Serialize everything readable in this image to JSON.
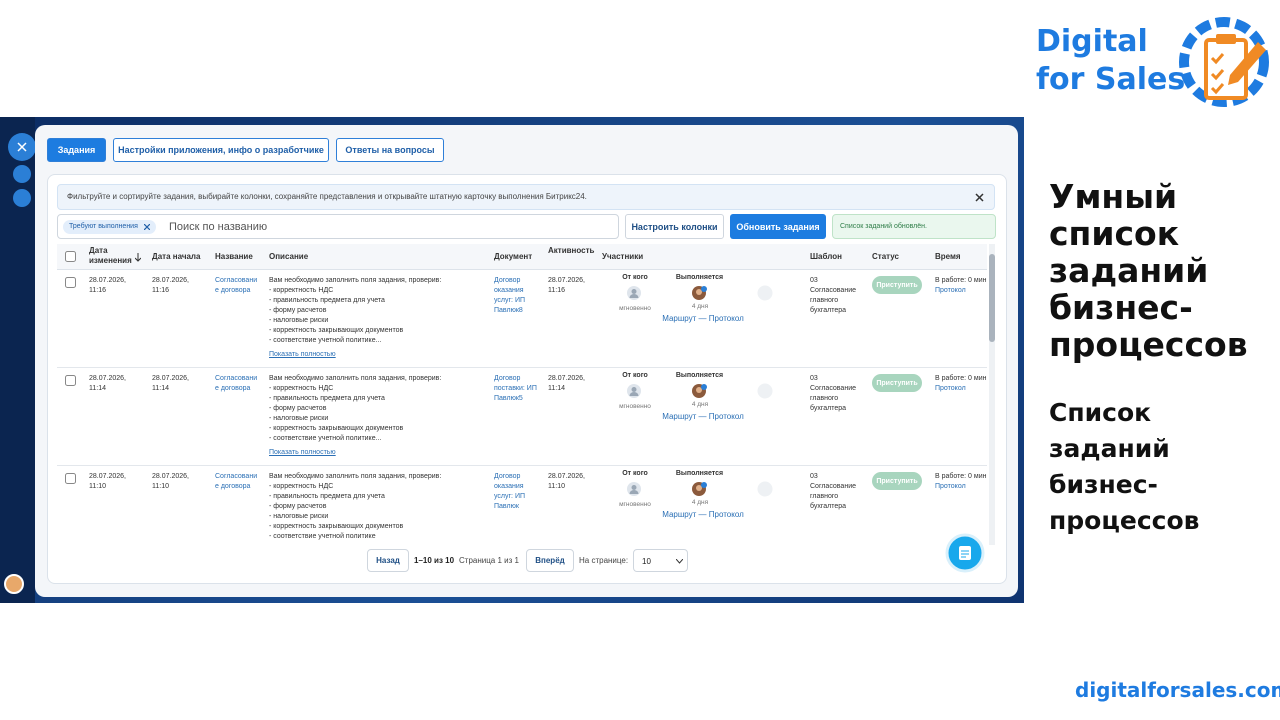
{
  "brand": {
    "line1": "Digital",
    "line2": "for Sales",
    "url": "digitalforsales.com"
  },
  "headline": "Умный список заданий бизнес-процессов",
  "subheadline": "Список заданий бизнес-процессов",
  "app": {
    "tabs": [
      "Задания",
      "Настройки приложения, инфо о разработчике",
      "Ответы на вопросы"
    ],
    "hint": "Фильтруйте и сортируйте задания, выбирайте колонки, сохраняйте представления и открывайте штатную карточку выполнения Битрикс24.",
    "filter_chip": "Требуют выполнения",
    "search_placeholder": "Поиск по названию",
    "buttons": {
      "columns": "Настроить колонки",
      "refresh": "Обновить задания"
    },
    "status_message": "Список заданий обновлён.",
    "columns": [
      "Дата изменения",
      "Дата начала",
      "Название",
      "Описание",
      "Документ",
      "Активность",
      "Участники",
      "Шаблон",
      "Статус",
      "Время"
    ],
    "rows": [
      {
        "changed": "28.07.2026, 11:16",
        "started": "28.07.2026, 11:16",
        "name": "Согласование договора",
        "description": [
          "Вам необходимо заполнить поля задания, проверив:",
          "- корректность НДС",
          "- правильность предмета для учета",
          "- форму расчетов",
          "- налоговые риски",
          "- корректность закрывающих документов",
          "- соответствие учетной политике..."
        ],
        "show_more": "Показать полностью",
        "document": "Договор оказания услуг: ИП Павлюк8",
        "activity": "28.07.2026, 11:16",
        "from_label": "От кого",
        "from_time": "мгновенно",
        "executing": "Выполняется",
        "duration": "4 дня",
        "route": "Маршрут — Протокол",
        "template": "03 Согласование главного бухгалтера",
        "action": "Приступить",
        "time": "В работе: 0 мин",
        "time_link": "Протокол"
      },
      {
        "changed": "28.07.2026, 11:14",
        "started": "28.07.2026, 11:14",
        "name": "Согласование договора",
        "description": [
          "Вам необходимо заполнить поля задания, проверив:",
          "- корректность НДС",
          "- правильность предмета для учета",
          "- форму расчетов",
          "- налоговые риски",
          "- корректность закрывающих документов",
          "- соответствие учетной политике..."
        ],
        "show_more": "Показать полностью",
        "document": "Договор поставки: ИП Павлюк5",
        "activity": "28.07.2026, 11:14",
        "from_label": "От кого",
        "from_time": "мгновенно",
        "executing": "Выполняется",
        "duration": "4 дня",
        "route": "Маршрут — Протокол",
        "template": "03 Согласование главного бухгалтера",
        "action": "Приступить",
        "time": "В работе: 0 мин",
        "time_link": "Протокол"
      },
      {
        "changed": "28.07.2026, 11:10",
        "started": "28.07.2026, 11:10",
        "name": "Согласование договора",
        "description": [
          "Вам необходимо заполнить поля задания, проверив:",
          "- корректность НДС",
          "- правильность предмета для учета",
          "- форму расчетов",
          "- налоговые риски",
          "- корректность закрывающих документов",
          "- соответствие учетной политике"
        ],
        "document": "Договор оказания услуг: ИП Павлюк",
        "activity": "28.07.2026, 11:10",
        "from_label": "От кого",
        "from_time": "мгновенно",
        "executing": "Выполняется",
        "duration": "4 дня",
        "route": "Маршрут — Протокол",
        "template": "03 Согласование главного бухгалтера",
        "action": "Приступить",
        "time": "В работе: 0 мин",
        "time_link": "Протокол"
      }
    ],
    "pagination": {
      "prev": "Назад",
      "range": "1–10 из 10",
      "page": "Страница 1 из 1",
      "next": "Вперёд",
      "per_page_label": "На странице:",
      "per_page": "10"
    }
  }
}
